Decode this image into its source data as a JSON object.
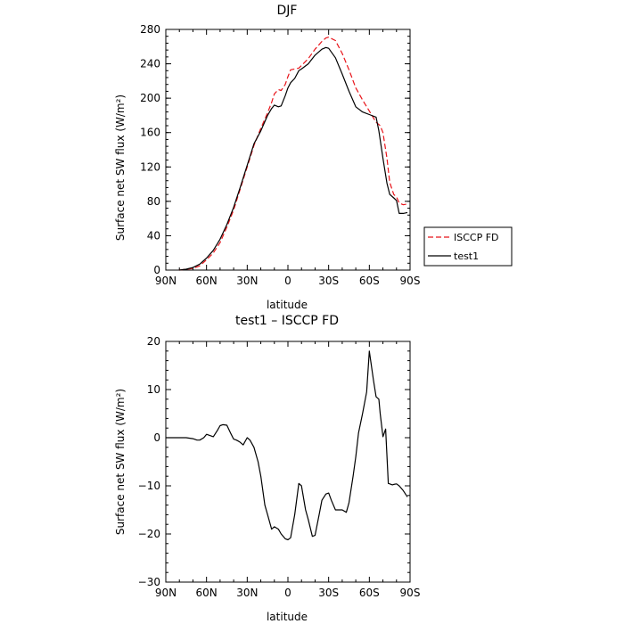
{
  "chart_data": [
    {
      "type": "line",
      "title": "DJF",
      "xlabel": "latitude",
      "ylabel": "Surface net SW flux (W/m²)",
      "xlim": [
        90,
        -90
      ],
      "ylim": [
        0,
        280
      ],
      "xticks": [
        90,
        60,
        30,
        0,
        -30,
        -60,
        -90
      ],
      "xtick_labels": [
        "90N",
        "60N",
        "30N",
        "0",
        "30S",
        "60S",
        "90S"
      ],
      "yticks": [
        0,
        40,
        80,
        120,
        160,
        200,
        240,
        280
      ],
      "ytick_labels": [
        "0",
        "40",
        "80",
        "120",
        "160",
        "200",
        "240",
        "280"
      ],
      "legend": {
        "placement": "right-outside",
        "entries": [
          "ISCCP FD",
          "test1"
        ]
      },
      "series": [
        {
          "name": "ISCCP FD",
          "color": "#e8141a",
          "style": "dashed",
          "x": [
            80,
            75,
            70,
            65,
            60,
            55,
            50,
            45,
            40,
            35,
            30,
            25,
            20,
            15,
            12,
            10,
            7,
            5,
            2,
            0,
            -2,
            -5,
            -8,
            -10,
            -15,
            -20,
            -25,
            -28,
            -30,
            -35,
            -40,
            -45,
            -50,
            -55,
            -60,
            -65,
            -68,
            -70,
            -73,
            -75,
            -78,
            -80,
            -82,
            -85,
            -88
          ],
          "values": [
            0,
            1,
            2,
            5,
            12,
            20,
            32,
            50,
            70,
            95,
            120,
            145,
            165,
            183,
            195,
            205,
            210,
            209,
            216,
            225,
            233,
            234,
            235,
            238,
            246,
            257,
            266,
            270,
            271,
            267,
            252,
            233,
            212,
            198,
            185,
            172,
            168,
            160,
            130,
            102,
            88,
            85,
            78,
            76,
            77
          ]
        },
        {
          "name": "test1",
          "color": "#000000",
          "style": "solid",
          "x": [
            80,
            75,
            70,
            65,
            60,
            55,
            50,
            45,
            40,
            35,
            30,
            25,
            20,
            15,
            12,
            10,
            7,
            5,
            2,
            0,
            -2,
            -5,
            -8,
            -10,
            -15,
            -20,
            -25,
            -28,
            -30,
            -35,
            -40,
            -45,
            -50,
            -55,
            -60,
            -65,
            -67,
            -70,
            -73,
            -75,
            -78,
            -80,
            -82,
            -85,
            -88
          ],
          "values": [
            0,
            1,
            3,
            7,
            14,
            23,
            36,
            53,
            73,
            97,
            122,
            147,
            162,
            180,
            188,
            192,
            190,
            191,
            203,
            212,
            218,
            223,
            232,
            234,
            240,
            250,
            257,
            259,
            258,
            247,
            228,
            208,
            190,
            184,
            181,
            178,
            162,
            130,
            101,
            88,
            84,
            81,
            66,
            66,
            67
          ]
        }
      ]
    },
    {
      "type": "line",
      "title": "test1 – ISCCP FD",
      "xlabel": "latitude",
      "ylabel": "Surface net SW flux (W/m²)",
      "xlim": [
        90,
        -90
      ],
      "ylim": [
        -30,
        20
      ],
      "xticks": [
        90,
        60,
        30,
        0,
        -30,
        -60,
        -90
      ],
      "xtick_labels": [
        "90N",
        "60N",
        "30N",
        "0",
        "30S",
        "60S",
        "90S"
      ],
      "yticks": [
        -30,
        -20,
        -10,
        0,
        10,
        20
      ],
      "ytick_labels": [
        "−30",
        "−20",
        "−10",
        "0",
        "10",
        "20"
      ],
      "series": [
        {
          "name": "test1 – ISCCP FD",
          "color": "#000000",
          "style": "solid",
          "x": [
            90,
            80,
            75,
            70,
            67,
            65,
            62,
            60,
            55,
            52,
            50,
            48,
            45,
            42,
            40,
            38,
            36,
            35,
            33,
            30,
            28,
            25,
            22,
            20,
            17,
            15,
            12,
            10,
            7,
            5,
            2,
            0,
            -2,
            -5,
            -8,
            -10,
            -13,
            -15,
            -18,
            -20,
            -23,
            -25,
            -28,
            -30,
            -32,
            -35,
            -38,
            -40,
            -43,
            -45,
            -48,
            -50,
            -52,
            -55,
            -58,
            -60,
            -63,
            -65,
            -67,
            -68,
            -70,
            -72,
            -74,
            -75,
            -77,
            -78,
            -80,
            -82,
            -85,
            -88
          ],
          "values": [
            0,
            0,
            0,
            -0.2,
            -0.5,
            -0.5,
            0,
            0.7,
            0.2,
            1.5,
            2.5,
            2.7,
            2.6,
            0.8,
            -0.3,
            -0.5,
            -0.8,
            -1.0,
            -1.5,
            0,
            -0.5,
            -2.0,
            -5.0,
            -8.0,
            -14.0,
            -16.0,
            -19.0,
            -18.5,
            -19.0,
            -20.0,
            -21.0,
            -21.2,
            -20.8,
            -16.0,
            -9.5,
            -10.0,
            -15.0,
            -17.0,
            -20.5,
            -20.3,
            -16.0,
            -13.0,
            -11.7,
            -11.5,
            -13.0,
            -15.0,
            -15.0,
            -15.0,
            -15.5,
            -13.5,
            -8.0,
            -4.0,
            1.0,
            5.0,
            9.5,
            18.0,
            12.0,
            8.5,
            8.0,
            5.0,
            0.2,
            1.8,
            -9.5,
            -9.6,
            -9.8,
            -9.7,
            -9.6,
            -10.0,
            -11.0,
            -12.3
          ]
        }
      ]
    }
  ]
}
